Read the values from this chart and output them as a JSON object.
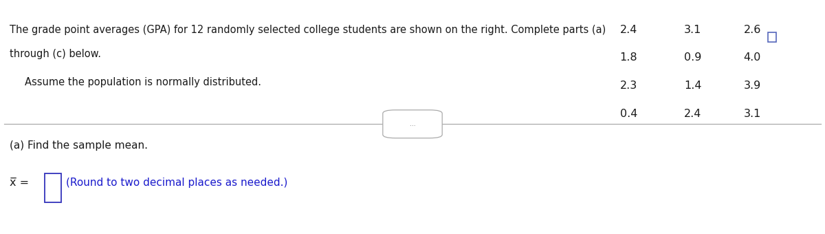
{
  "main_text_line1": "The grade point averages (GPA) for 12 randomly selected college students are shown on the right. Complete parts (a)",
  "main_text_line2": "through (c) below.",
  "assume_text": "Assume the population is normally distributed.",
  "gpa_col1": [
    "2.4",
    "1.8",
    "2.3",
    "0.4"
  ],
  "gpa_col2": [
    "3.1",
    "0.9",
    "1.4",
    "2.4"
  ],
  "gpa_col3": [
    "2.6",
    "4.0",
    "3.9",
    "3.1"
  ],
  "part_a_text": "(a) Find the sample mean.",
  "round_text": "(Round to two decimal places as needed.)",
  "divider_label": "...",
  "bg_color": "#ffffff",
  "text_color": "#1a1a1a",
  "blue_color": "#1a1acc",
  "box_border_color": "#3333bb",
  "icon_color": "#5566bb",
  "divider_color": "#aaaaaa",
  "font_size_main": 10.5,
  "font_size_gpa": 11.5,
  "font_size_part": 11.0,
  "font_size_xbar": 11.5
}
